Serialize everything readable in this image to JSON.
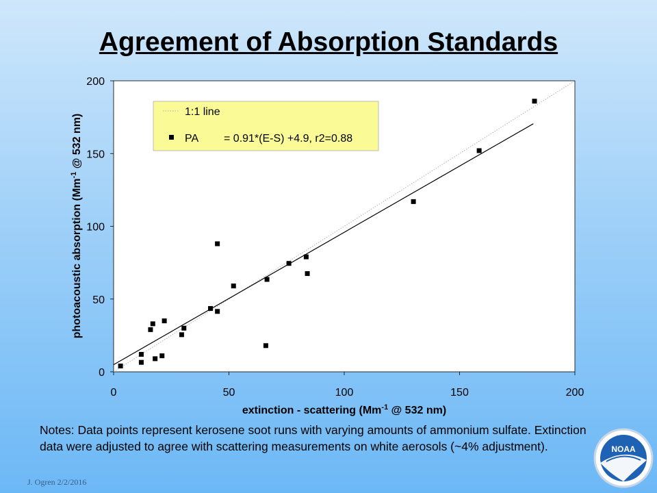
{
  "slide": {
    "title": "Agreement of Absorption Standards",
    "notes": "Notes:  Data points represent kerosene soot runs with varying amounts of ammonium sulfate.  Extinction data were adjusted to agree with scattering measurements  on white aerosols (~4% adjustment).",
    "footer": "J. Ogren  2/2/2016",
    "logo_text": "NOAA"
  },
  "chart_data": {
    "type": "scatter",
    "xlabel": "extinction - scattering (Mm⁻¹ @ 532 nm)",
    "ylabel": "photoacoustic absorption (Mm⁻¹ @ 532 nm)",
    "xlim": [
      0,
      200
    ],
    "ylim": [
      0,
      200
    ],
    "x_ticks": [
      "0",
      "50",
      "100",
      "150",
      "200"
    ],
    "y_ticks": [
      "0",
      "50",
      "100",
      "150",
      "200"
    ],
    "grid": false,
    "legend": {
      "placement": "top-left",
      "background": "#fafa96",
      "entries": [
        {
          "label": "1:1 line",
          "text": ""
        },
        {
          "label": "PA",
          "text": "= 0.91*(E-S) +4.9, r2=0.88"
        }
      ]
    },
    "series": [
      {
        "name": "PA",
        "marker": "square",
        "color": "#000000",
        "x": [
          3,
          12,
          12,
          16,
          17,
          18,
          21,
          22,
          29.5,
          30.5,
          42,
          45,
          45,
          52,
          66,
          66.5,
          76,
          83.5,
          84,
          130,
          158.5,
          182.5
        ],
        "y": [
          4,
          6.5,
          12,
          29,
          33,
          9,
          11,
          35,
          25.5,
          30,
          43.5,
          41.5,
          88,
          59,
          18,
          63.5,
          74.5,
          79,
          67.5,
          117,
          152,
          186
        ]
      }
    ],
    "lines": [
      {
        "name": "1:1 line",
        "style": "dotted",
        "color": "#b0b0b0",
        "x": [
          0,
          200
        ],
        "y": [
          0,
          200
        ]
      },
      {
        "name": "fit",
        "style": "solid",
        "color": "#000000",
        "x": [
          0,
          182
        ],
        "y": [
          4.9,
          170.5
        ]
      }
    ]
  }
}
